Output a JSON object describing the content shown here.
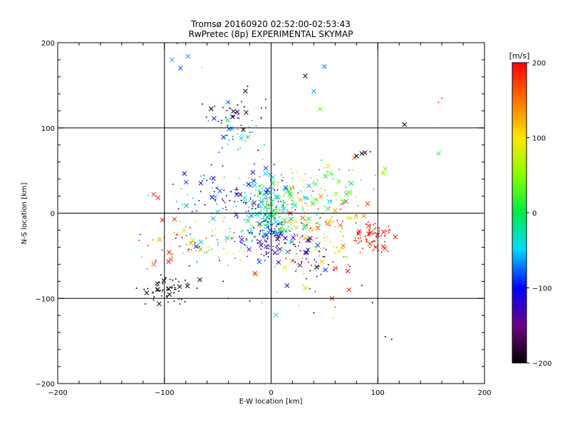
{
  "chart_data": {
    "type": "scatter",
    "title_line1": "Tromsø 20160920 02:52:00-02:53:43",
    "title_line2": "RwPretec (8p) EXPERIMENTAL SKYMAP",
    "xlabel": "E-W location [km]",
    "ylabel": "N-S location [km]",
    "xlim": [
      -200,
      200
    ],
    "ylim": [
      -200,
      200
    ],
    "xticks": [
      -200,
      -100,
      0,
      100,
      200
    ],
    "yticks": [
      -200,
      -100,
      0,
      100,
      200
    ],
    "grid_lines": [
      -100,
      0,
      100
    ],
    "grid": true,
    "colorbar": {
      "label": "[m/s]",
      "range": [
        -200,
        200
      ],
      "ticks": [
        -200,
        -100,
        0,
        100,
        200
      ],
      "colormap": "rainbow (black-purple-blue-cyan-green-yellow-orange-red)"
    },
    "marker_types": [
      "cross (x)",
      "dot (+)"
    ],
    "clusters": [
      {
        "x_center": -35,
        "y_center": 118,
        "x_spread": 18,
        "y_spread": 15,
        "count": 45,
        "v_mean": -150,
        "v_spread": 60
      },
      {
        "x_center": -30,
        "y_center": 92,
        "x_spread": 12,
        "y_spread": 8,
        "count": 25,
        "v_mean": -60,
        "v_spread": 30
      },
      {
        "x_center": -100,
        "y_center": -90,
        "x_spread": 12,
        "y_spread": 8,
        "count": 60,
        "v_mean": -195,
        "v_spread": 10
      },
      {
        "x_center": 0,
        "y_center": 5,
        "x_spread": 14,
        "y_spread": 18,
        "count": 260,
        "v_mean": -20,
        "v_spread": 35
      },
      {
        "x_center": 0,
        "y_center": -30,
        "x_spread": 14,
        "y_spread": 12,
        "count": 110,
        "v_mean": -110,
        "v_spread": 30
      },
      {
        "x_center": -50,
        "y_center": 25,
        "x_spread": 25,
        "y_spread": 15,
        "count": 90,
        "v_mean": -100,
        "v_spread": 50
      },
      {
        "x_center": -55,
        "y_center": -35,
        "x_spread": 30,
        "y_spread": 15,
        "count": 80,
        "v_mean": 20,
        "v_spread": 90
      },
      {
        "x_center": 45,
        "y_center": -15,
        "x_spread": 20,
        "y_spread": 25,
        "count": 120,
        "v_mean": 140,
        "v_spread": 45
      },
      {
        "x_center": 95,
        "y_center": -28,
        "x_spread": 10,
        "y_spread": 10,
        "count": 70,
        "v_mean": 195,
        "v_spread": 10
      },
      {
        "x_center": 40,
        "y_center": 25,
        "x_spread": 25,
        "y_spread": 20,
        "count": 70,
        "v_mean": 10,
        "v_spread": 50
      },
      {
        "x_center": 40,
        "y_center": -55,
        "x_spread": 12,
        "y_spread": 10,
        "count": 35,
        "v_mean": -150,
        "v_spread": 60
      },
      {
        "x_center": -90,
        "y_center": -40,
        "x_spread": 15,
        "y_spread": 15,
        "count": 25,
        "v_mean": 180,
        "v_spread": 30
      },
      {
        "x_center": 20,
        "y_center": -70,
        "x_spread": 35,
        "y_spread": 25,
        "count": 30,
        "v_mean": 50,
        "v_spread": 130
      }
    ],
    "points": [
      {
        "x": -93,
        "y": 180,
        "v": -60,
        "m": "x"
      },
      {
        "x": -85,
        "y": 170,
        "v": -80,
        "m": "x"
      },
      {
        "x": -78,
        "y": 184,
        "v": -60,
        "m": "x"
      },
      {
        "x": -88,
        "y": 199,
        "v": 190,
        "m": "+"
      },
      {
        "x": -65,
        "y": 171,
        "v": 30,
        "m": "+"
      },
      {
        "x": 32,
        "y": 161,
        "v": -200,
        "m": "x"
      },
      {
        "x": 50,
        "y": 172,
        "v": -70,
        "m": "x"
      },
      {
        "x": 40,
        "y": 143,
        "v": -60,
        "m": "x"
      },
      {
        "x": 46,
        "y": 122,
        "v": 30,
        "m": "x"
      },
      {
        "x": 125,
        "y": 104,
        "v": -200,
        "m": "x"
      },
      {
        "x": 157,
        "y": 130,
        "v": 185,
        "m": "+"
      },
      {
        "x": 160,
        "y": 135,
        "v": 190,
        "m": "+"
      },
      {
        "x": 157,
        "y": 70,
        "v": 20,
        "m": "x"
      },
      {
        "x": 157,
        "y": 100,
        "v": 110,
        "m": "+"
      },
      {
        "x": 105,
        "y": 47,
        "v": 50,
        "m": "x"
      },
      {
        "x": 107,
        "y": 52,
        "v": 40,
        "m": "x"
      },
      {
        "x": 93,
        "y": 72,
        "v": -200,
        "m": "+"
      },
      {
        "x": 85,
        "y": 70,
        "v": -200,
        "m": "x"
      },
      {
        "x": 88,
        "y": 71,
        "v": -190,
        "m": "x"
      },
      {
        "x": 78,
        "y": 65,
        "v": 150,
        "m": "x"
      },
      {
        "x": 80,
        "y": 67,
        "v": -200,
        "m": "x"
      },
      {
        "x": -106,
        "y": 18,
        "v": 190,
        "m": "x"
      },
      {
        "x": -110,
        "y": 22,
        "v": 175,
        "m": "x"
      },
      {
        "x": -108,
        "y": -55,
        "v": 180,
        "m": "+"
      },
      {
        "x": -110,
        "y": -60,
        "v": 160,
        "m": "x"
      },
      {
        "x": -45,
        "y": -80,
        "v": -200,
        "m": "+"
      },
      {
        "x": 15,
        "y": -85,
        "v": -140,
        "m": "x"
      },
      {
        "x": 32,
        "y": -88,
        "v": 60,
        "m": "x"
      },
      {
        "x": 57,
        "y": -100,
        "v": 190,
        "m": "x"
      },
      {
        "x": 73,
        "y": -90,
        "v": 185,
        "m": "x"
      },
      {
        "x": 60,
        "y": -110,
        "v": 180,
        "m": "+"
      },
      {
        "x": 85,
        "y": -85,
        "v": -200,
        "m": "+"
      },
      {
        "x": 95,
        "y": -105,
        "v": -200,
        "m": "+"
      },
      {
        "x": 40,
        "y": -117,
        "v": -200,
        "m": "+"
      },
      {
        "x": 107,
        "y": -145,
        "v": -200,
        "m": "+"
      },
      {
        "x": 113,
        "y": -148,
        "v": -200,
        "m": "+"
      },
      {
        "x": 58,
        "y": -123,
        "v": 60,
        "m": "+"
      },
      {
        "x": -40,
        "y": -100,
        "v": -100,
        "m": "+"
      },
      {
        "x": -20,
        "y": -103,
        "v": -200,
        "m": "+"
      }
    ]
  }
}
